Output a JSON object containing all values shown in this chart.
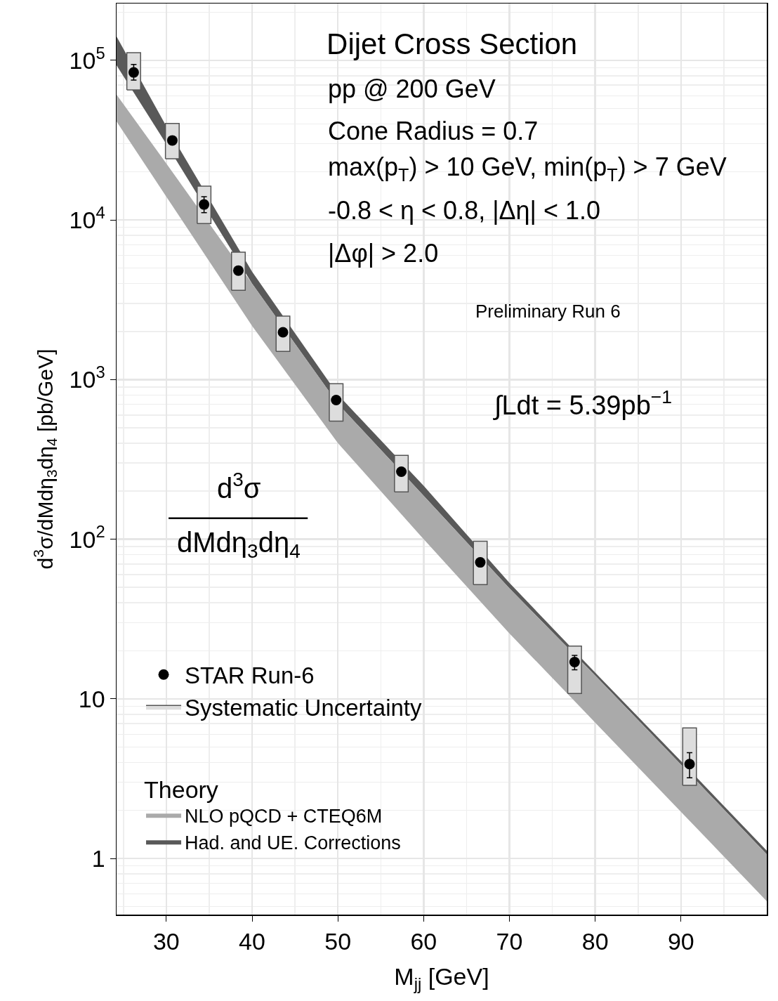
{
  "chart_data": {
    "type": "line",
    "title": "Dijet Cross Section",
    "xlabel": "M$_{jj}$ [GeV]",
    "ylabel": "d$^{3}$σ/dMdη$_{3}$dη$_{4}$ [pb/GeV]",
    "legend_title": "Theory",
    "annotations": [
      "pp @ 200 GeV",
      "Cone Radius = 0.7",
      "max(p$_{T}$) > 10 GeV, min(p$_{T}$) > 7 GeV",
      "-0.8 < η < 0.8, |Δη| < 1.0",
      "|Δφ| > 2.0",
      "Preliminary Run 6",
      "∫Ldt = 5.39pb$^{−1}$",
      "d$^{3}$σ",
      "dMdη$_{3}$dη$_{4}$"
    ],
    "series": [
      {
        "name": "Had. and UE. Corrections",
        "color": "#595959",
        "x": [
          24.2,
          30,
          40,
          50,
          60,
          70,
          80,
          90,
          100
        ],
        "values": [
          null,
          null,
          null,
          null,
          null,
          null,
          null,
          null,
          null
        ],
        "upper": [
          141000,
          38600,
          4740,
          805,
          216,
          53.3,
          14.6,
          4.07,
          1.12
        ],
        "lower": [
          93100,
          29900,
          3990,
          706,
          187,
          49.2,
          14.0,
          3.87,
          1.06
        ]
      },
      {
        "name": "NLO pQCD + CTEQ6M",
        "type": "line",
        "color": "#aaaaaa",
        "x": [
          24.2,
          30,
          40,
          50,
          60,
          70,
          80,
          90,
          100
        ],
        "values": [
          null,
          null,
          null,
          null,
          null,
          null,
          null,
          null,
          null
        ],
        "upper": [
          60900,
          22600,
          3990,
          706,
          187,
          49.2,
          14.0,
          3.87,
          1.06
        ],
        "lower": [
          41400,
          14000,
          2170,
          400,
          100,
          25.7,
          7.1,
          1.96,
          0.54
        ]
      },
      {
        "name": "Systematic Uncertainty",
        "type": "bar",
        "color": "#dddddd",
        "x": [
          26.2,
          30.7,
          34.4,
          38.4,
          43.6,
          49.8,
          57.4,
          66.6,
          77.6,
          91.0
        ],
        "base": [
          65300,
          24200,
          9500,
          3630,
          1500,
          550,
          198,
          52,
          10.8,
          2.87
        ],
        "values": [
          46500,
          16000,
          6800,
          2650,
          1000,
          392,
          137,
          45,
          10.6,
          3.7
        ]
      },
      {
        "name": "STAR Run-6",
        "type": "scatter",
        "color": "#000000",
        "marker": "circle",
        "x": [
          26.2,
          30.7,
          34.4,
          38.4,
          43.6,
          49.8,
          57.4,
          66.6,
          77.6,
          91.0
        ],
        "values": [
          84000,
          31500,
          12500,
          4820,
          1980,
          745,
          265,
          71.6,
          17,
          3.9
        ],
        "errors": [
          [
            75300,
            94200
          ],
          null,
          [
            11100,
            14000
          ],
          null,
          null,
          null,
          null,
          null,
          [
            15.2,
            18.7
          ],
          [
            3.2,
            4.6
          ]
        ]
      }
    ],
    "xlim": [
      24.2,
      100
    ],
    "xticks": [
      30,
      40,
      50,
      60,
      70,
      80,
      90
    ],
    "ylim": [
      0.445,
      227000
    ],
    "yticks": [
      {
        "value": 100000,
        "label": "10$^{5}$"
      },
      {
        "value": 10000,
        "label": "10$^{4}$"
      },
      {
        "value": 1000,
        "label": "10$^{3}$"
      },
      {
        "value": 100,
        "label": "10$^{2}$"
      },
      10,
      1
    ],
    "log": "y",
    "grid": true,
    "legend": "bottom left"
  }
}
